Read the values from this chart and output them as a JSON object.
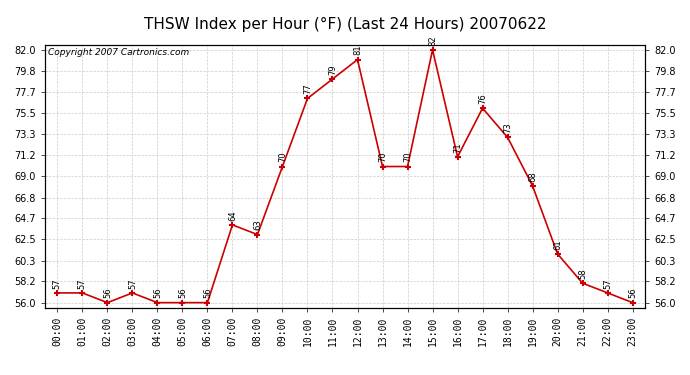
{
  "title": "THSW Index per Hour (°F) (Last 24 Hours) 20070622",
  "copyright": "Copyright 2007 Cartronics.com",
  "hours": [
    "00:00",
    "01:00",
    "02:00",
    "03:00",
    "04:00",
    "05:00",
    "06:00",
    "07:00",
    "08:00",
    "09:00",
    "10:00",
    "11:00",
    "12:00",
    "13:00",
    "14:00",
    "15:00",
    "16:00",
    "17:00",
    "18:00",
    "19:00",
    "20:00",
    "21:00",
    "22:00",
    "23:00"
  ],
  "values": [
    57,
    57,
    56,
    57,
    56,
    56,
    56,
    64,
    63,
    70,
    77,
    79,
    81,
    70,
    70,
    82,
    71,
    76,
    73,
    68,
    61,
    58,
    57,
    56
  ],
  "ylim": [
    55.5,
    82.5
  ],
  "yticks": [
    56.0,
    58.2,
    60.3,
    62.5,
    64.7,
    66.8,
    69.0,
    71.2,
    73.3,
    75.5,
    77.7,
    79.8,
    82.0
  ],
  "line_color": "#cc0000",
  "marker_color": "#cc0000",
  "bg_color": "#ffffff",
  "grid_color": "#cccccc",
  "title_fontsize": 11,
  "label_fontsize": 7,
  "copyright_fontsize": 6.5,
  "annot_fontsize": 6
}
